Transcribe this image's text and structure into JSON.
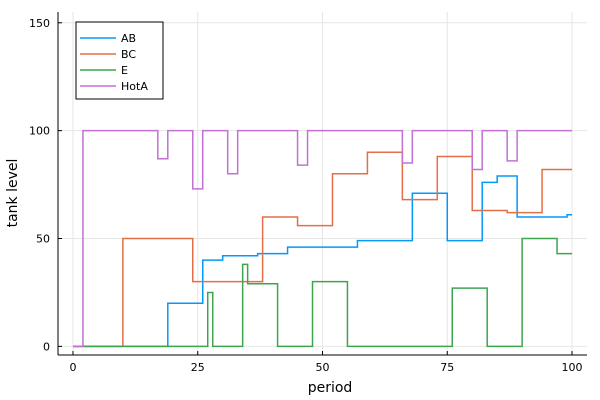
{
  "chart_data": {
    "type": "line",
    "step": true,
    "xlabel": "period",
    "ylabel": "tank level",
    "xlim": [
      -3,
      103
    ],
    "ylim": [
      -4,
      155
    ],
    "xticks": [
      0,
      25,
      50,
      75,
      100
    ],
    "yticks": [
      0,
      50,
      100,
      150
    ],
    "grid": true,
    "legend_position": "top-left",
    "series": [
      {
        "name": "AB",
        "color": "#009AFA",
        "points": [
          [
            0,
            0
          ],
          [
            19,
            0
          ],
          [
            19,
            20
          ],
          [
            26,
            20
          ],
          [
            26,
            40
          ],
          [
            30,
            40
          ],
          [
            30,
            42
          ],
          [
            37,
            42
          ],
          [
            37,
            43
          ],
          [
            43,
            43
          ],
          [
            43,
            46
          ],
          [
            57,
            46
          ],
          [
            57,
            49
          ],
          [
            68,
            49
          ],
          [
            68,
            71
          ],
          [
            75,
            71
          ],
          [
            75,
            49
          ],
          [
            82,
            49
          ],
          [
            82,
            76
          ],
          [
            85,
            76
          ],
          [
            85,
            79
          ],
          [
            89,
            79
          ],
          [
            89,
            60
          ],
          [
            99,
            60
          ],
          [
            99,
            61
          ],
          [
            100,
            61
          ]
        ]
      },
      {
        "name": "BC",
        "color": "#E36F47",
        "points": [
          [
            0,
            0
          ],
          [
            10,
            0
          ],
          [
            10,
            50
          ],
          [
            24,
            50
          ],
          [
            24,
            30
          ],
          [
            38,
            30
          ],
          [
            38,
            60
          ],
          [
            45,
            60
          ],
          [
            45,
            56
          ],
          [
            52,
            56
          ],
          [
            52,
            80
          ],
          [
            59,
            80
          ],
          [
            59,
            90
          ],
          [
            66,
            90
          ],
          [
            66,
            68
          ],
          [
            73,
            68
          ],
          [
            73,
            88
          ],
          [
            80,
            88
          ],
          [
            80,
            63
          ],
          [
            87,
            63
          ],
          [
            87,
            62
          ],
          [
            94,
            62
          ],
          [
            94,
            82
          ],
          [
            100,
            82
          ]
        ]
      },
      {
        "name": "E",
        "color": "#3EA44E",
        "points": [
          [
            0,
            0
          ],
          [
            27,
            0
          ],
          [
            27,
            25
          ],
          [
            28,
            25
          ],
          [
            28,
            0
          ],
          [
            34,
            0
          ],
          [
            34,
            38
          ],
          [
            35,
            38
          ],
          [
            35,
            29
          ],
          [
            41,
            29
          ],
          [
            41,
            0
          ],
          [
            48,
            0
          ],
          [
            48,
            30
          ],
          [
            55,
            30
          ],
          [
            55,
            0
          ],
          [
            76,
            0
          ],
          [
            76,
            27
          ],
          [
            83,
            27
          ],
          [
            83,
            0
          ],
          [
            90,
            0
          ],
          [
            90,
            50
          ],
          [
            97,
            50
          ],
          [
            97,
            43
          ],
          [
            100,
            43
          ]
        ]
      },
      {
        "name": "HotA",
        "color": "#C271D2",
        "points": [
          [
            0,
            0
          ],
          [
            2,
            0
          ],
          [
            2,
            100
          ],
          [
            17,
            100
          ],
          [
            17,
            87
          ],
          [
            19,
            87
          ],
          [
            19,
            100
          ],
          [
            24,
            100
          ],
          [
            24,
            73
          ],
          [
            26,
            73
          ],
          [
            26,
            100
          ],
          [
            31,
            100
          ],
          [
            31,
            80
          ],
          [
            33,
            80
          ],
          [
            33,
            100
          ],
          [
            45,
            100
          ],
          [
            45,
            84
          ],
          [
            47,
            84
          ],
          [
            47,
            100
          ],
          [
            66,
            100
          ],
          [
            66,
            85
          ],
          [
            68,
            85
          ],
          [
            68,
            100
          ],
          [
            80,
            100
          ],
          [
            80,
            82
          ],
          [
            82,
            82
          ],
          [
            82,
            100
          ],
          [
            87,
            100
          ],
          [
            87,
            86
          ],
          [
            89,
            86
          ],
          [
            89,
            100
          ],
          [
            100,
            100
          ]
        ]
      }
    ]
  }
}
